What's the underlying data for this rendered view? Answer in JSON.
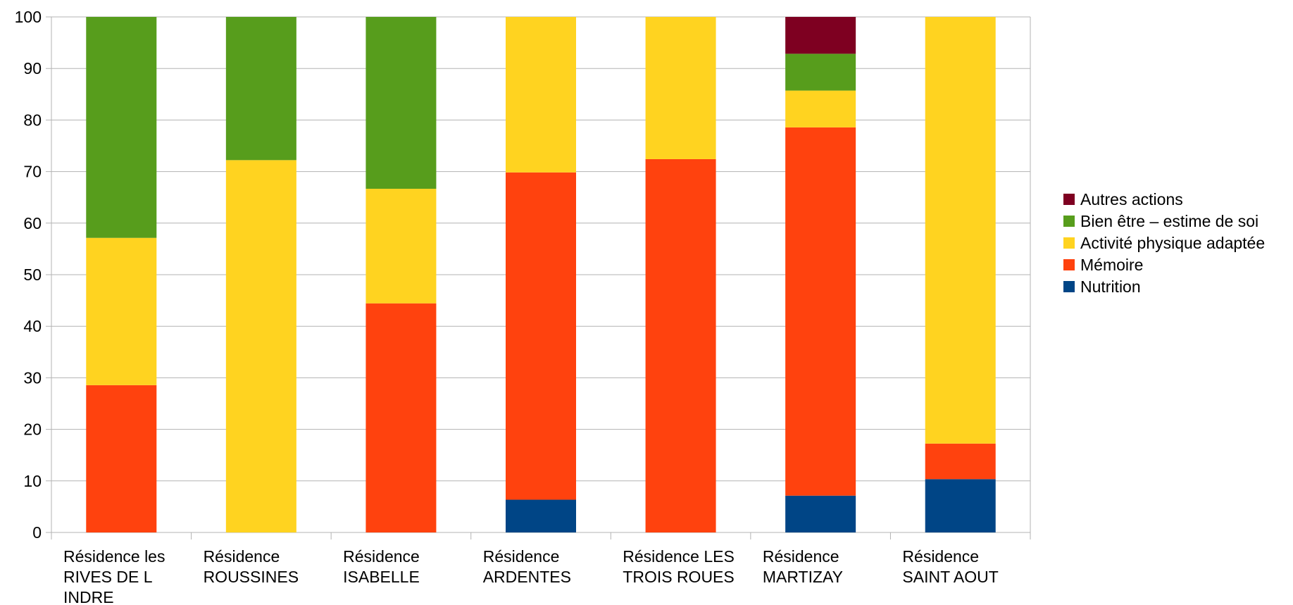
{
  "chart_data": {
    "type": "bar",
    "stacked": true,
    "categories": [
      [
        "Résidence les",
        "RIVES DE L",
        "INDRE"
      ],
      [
        "Résidence",
        "ROUSSINES"
      ],
      [
        "Résidence",
        "ISABELLE"
      ],
      [
        "Résidence",
        "ARDENTES"
      ],
      [
        "Résidence LES",
        "TROIS ROUES"
      ],
      [
        "Résidence",
        "MARTIZAY"
      ],
      [
        "Résidence",
        "SAINT AOUT"
      ]
    ],
    "series": [
      {
        "name": "Nutrition",
        "color": "#004586",
        "values": [
          0,
          0,
          0,
          6.35,
          0,
          7.14,
          10.34
        ]
      },
      {
        "name": "Mémoire",
        "color": "#ff420e",
        "values": [
          28.57,
          0,
          44.44,
          63.49,
          72.41,
          71.43,
          6.9
        ]
      },
      {
        "name": "Activité physique adaptée",
        "color": "#ffd320",
        "values": [
          28.57,
          72.22,
          22.22,
          30.16,
          27.59,
          7.14,
          82.76
        ]
      },
      {
        "name": "Bien être – estime de soi",
        "color": "#579d1c",
        "values": [
          42.86,
          27.78,
          33.34,
          0,
          0,
          7.14,
          0
        ]
      },
      {
        "name": "Autres actions",
        "color": "#7e0021",
        "values": [
          0,
          0,
          0,
          0,
          0,
          7.15,
          0
        ]
      }
    ],
    "yticks": [
      "0",
      "10",
      "20",
      "30",
      "40",
      "50",
      "60",
      "70",
      "80",
      "90",
      "100"
    ],
    "ylim": [
      0,
      100
    ],
    "grid": true,
    "legend_position": "right",
    "xlabel": "",
    "ylabel": ""
  }
}
